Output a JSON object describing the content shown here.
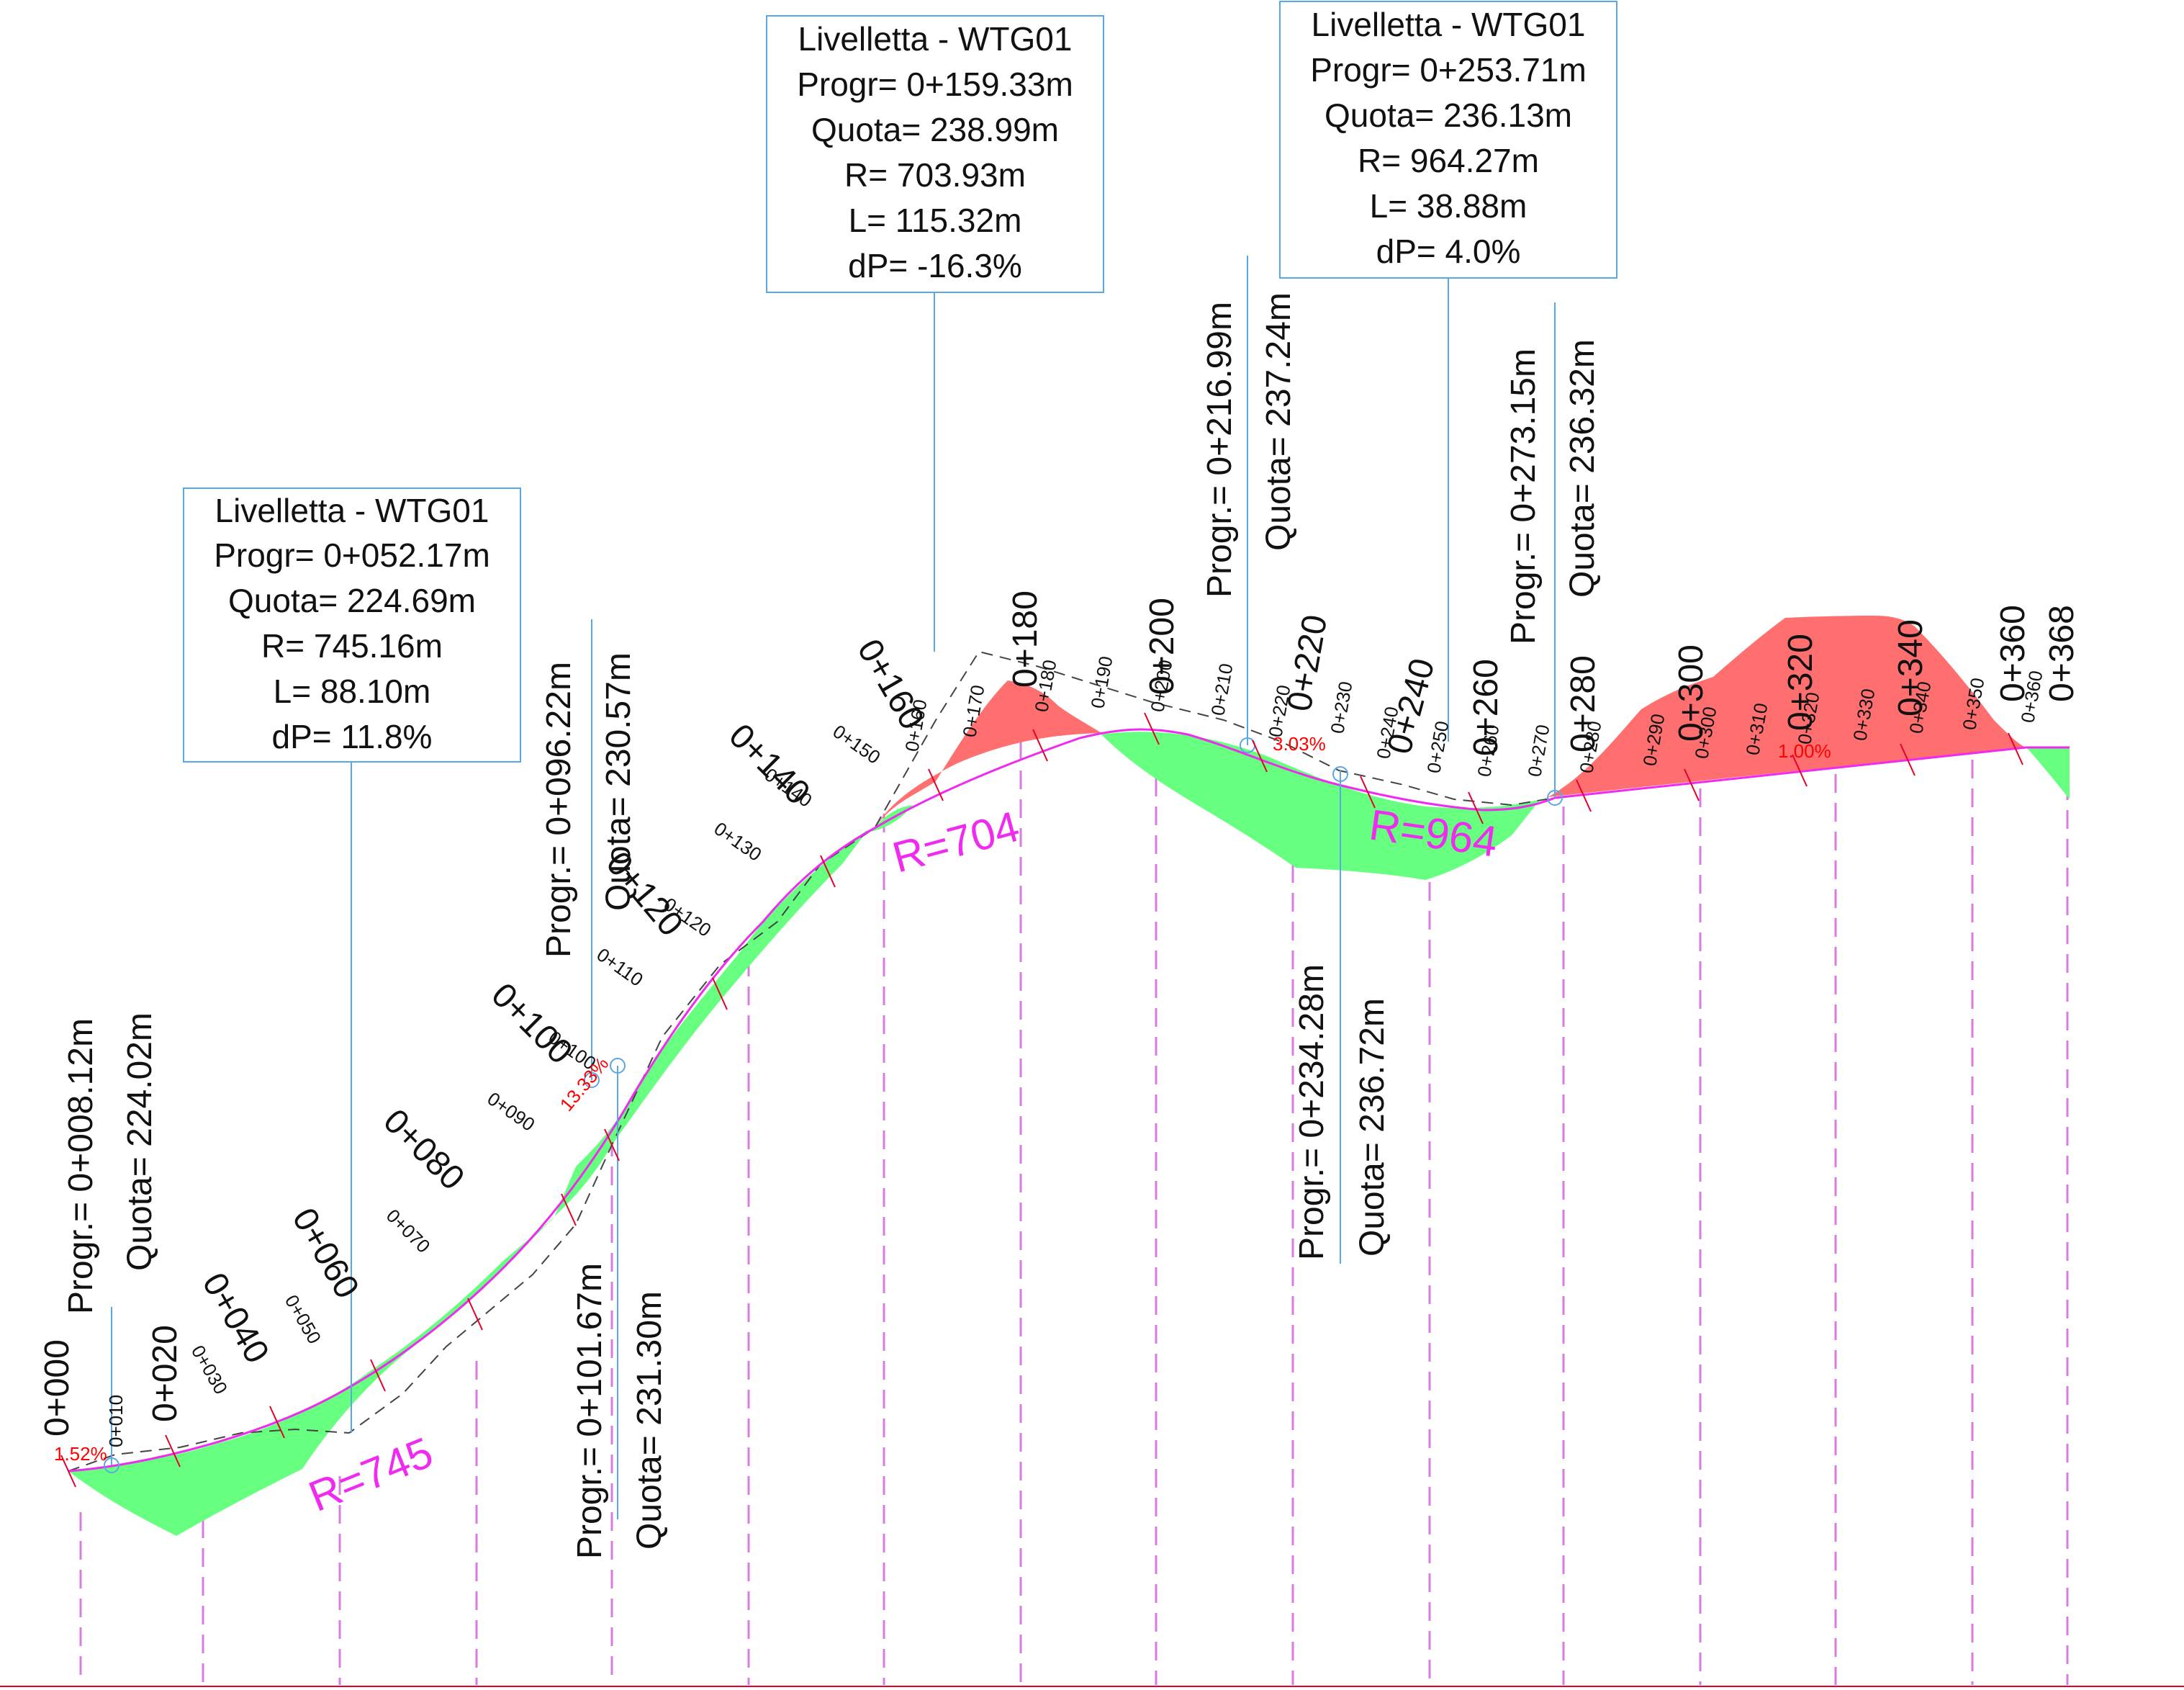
{
  "colors": {
    "fill_green": "#66ff80",
    "cut_red": "#ff6f6f",
    "profile_magenta": "#ee2bee",
    "leader_blue": "#5aa7e6",
    "station_tick": "#e4002b",
    "grade_text": "#ff0000",
    "dash_line": "#d87ce0"
  },
  "vertical_curves": [
    {
      "title": "Livelletta - WTG01",
      "progr": "Progr= 0+052.17m",
      "quota": "Quota= 224.69m",
      "r": "R= 745.16m",
      "l": "L= 88.10m",
      "dp": "dP= 11.8%",
      "radius_label": "R=745"
    },
    {
      "title": "Livelletta - WTG01",
      "progr": "Progr= 0+159.33m",
      "quota": "Quota= 238.99m",
      "r": "R= 703.93m",
      "l": "L= 115.32m",
      "dp": "dP= -16.3%",
      "radius_label": "R=704"
    },
    {
      "title": "Livelletta - WTG01",
      "progr": "Progr= 0+253.71m",
      "quota": "Quota= 236.13m",
      "r": "R= 964.27m",
      "l": "L= 38.88m",
      "dp": "dP= 4.0%",
      "radius_label": "R=964"
    }
  ],
  "tangent_points": [
    {
      "progr": "Progr.= 0+008.12m",
      "quota": "Quota= 224.02m"
    },
    {
      "progr": "Progr.= 0+096.22m",
      "quota": "Quota= 230.57m"
    },
    {
      "progr": "Progr.= 0+101.67m",
      "quota": "Quota= 231.30m"
    },
    {
      "progr": "Progr.= 0+216.99m",
      "quota": "Quota= 237.24m"
    },
    {
      "progr": "Progr.= 0+234.28m",
      "quota": "Quota= 236.72m"
    },
    {
      "progr": "Progr.= 0+273.15m",
      "quota": "Quota= 236.32m"
    }
  ],
  "grades": [
    "1.52%",
    "13.33%",
    "3.03%",
    "1.00%"
  ],
  "major_stations": [
    "0+000",
    "0+020",
    "0+040",
    "0+060",
    "0+080",
    "0+100",
    "0+120",
    "0+140",
    "0+160",
    "0+180",
    "0+200",
    "0+220",
    "0+240",
    "0+260",
    "0+280",
    "0+300",
    "0+320",
    "0+340",
    "0+360",
    "0+368"
  ],
  "minor_stations": [
    "0+010",
    "0+030",
    "0+050",
    "0+070",
    "0+090",
    "0+100",
    "0+110",
    "0+120",
    "0+130",
    "0+140",
    "0+150",
    "0+160",
    "0+170",
    "0+180",
    "0+190",
    "0+200",
    "0+210",
    "0+220",
    "0+230",
    "0+240",
    "0+250",
    "0+260",
    "0+270",
    "0+280",
    "0+290",
    "0+300",
    "0+310",
    "0+320",
    "0+330",
    "0+340",
    "0+350",
    "0+360"
  ]
}
